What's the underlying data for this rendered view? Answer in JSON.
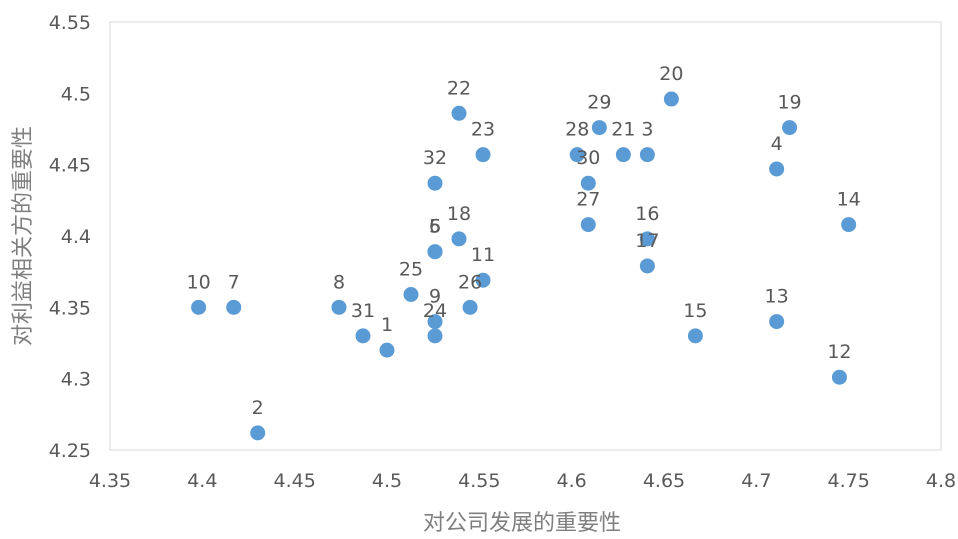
{
  "chart_data": {
    "type": "scatter",
    "title": "",
    "xlabel": "对公司发展的重要性",
    "ylabel": "对利益相关方的重要性",
    "xlim": [
      4.35,
      4.8
    ],
    "ylim": [
      4.25,
      4.55
    ],
    "x_ticks": [
      "4.35",
      "4.4",
      "4.45",
      "4.5",
      "4.55",
      "4.6",
      "4.65",
      "4.7",
      "4.75",
      "4.8"
    ],
    "y_ticks": [
      "4.25",
      "4.3",
      "4.35",
      "4.4",
      "4.45",
      "4.5",
      "4.55"
    ],
    "grid": false,
    "legend": "none",
    "marker_color": "#5b9bd5",
    "points": [
      {
        "label": "1",
        "x": 4.5,
        "y": 4.32
      },
      {
        "label": "2",
        "x": 4.43,
        "y": 4.262
      },
      {
        "label": "3",
        "x": 4.641,
        "y": 4.457
      },
      {
        "label": "4",
        "x": 4.711,
        "y": 4.447
      },
      {
        "label": "5",
        "x": 4.526,
        "y": 4.389
      },
      {
        "label": "6",
        "x": 4.526,
        "y": 4.389
      },
      {
        "label": "7",
        "x": 4.417,
        "y": 4.35
      },
      {
        "label": "8",
        "x": 4.474,
        "y": 4.35
      },
      {
        "label": "9",
        "x": 4.526,
        "y": 4.34
      },
      {
        "label": "10",
        "x": 4.398,
        "y": 4.35
      },
      {
        "label": "11",
        "x": 4.552,
        "y": 4.369
      },
      {
        "label": "12",
        "x": 4.745,
        "y": 4.301
      },
      {
        "label": "13",
        "x": 4.711,
        "y": 4.34
      },
      {
        "label": "14",
        "x": 4.75,
        "y": 4.408
      },
      {
        "label": "15",
        "x": 4.667,
        "y": 4.33
      },
      {
        "label": "16",
        "x": 4.641,
        "y": 4.398
      },
      {
        "label": "17",
        "x": 4.641,
        "y": 4.379
      },
      {
        "label": "18",
        "x": 4.539,
        "y": 4.398
      },
      {
        "label": "19",
        "x": 4.718,
        "y": 4.476
      },
      {
        "label": "20",
        "x": 4.654,
        "y": 4.496
      },
      {
        "label": "21",
        "x": 4.628,
        "y": 4.457
      },
      {
        "label": "22",
        "x": 4.539,
        "y": 4.486
      },
      {
        "label": "23",
        "x": 4.552,
        "y": 4.457
      },
      {
        "label": "24",
        "x": 4.526,
        "y": 4.33
      },
      {
        "label": "25",
        "x": 4.513,
        "y": 4.359
      },
      {
        "label": "26",
        "x": 4.545,
        "y": 4.35
      },
      {
        "label": "27",
        "x": 4.609,
        "y": 4.408
      },
      {
        "label": "28",
        "x": 4.603,
        "y": 4.457
      },
      {
        "label": "29",
        "x": 4.615,
        "y": 4.476
      },
      {
        "label": "30",
        "x": 4.609,
        "y": 4.437
      },
      {
        "label": "31",
        "x": 4.487,
        "y": 4.33
      },
      {
        "label": "32",
        "x": 4.526,
        "y": 4.437
      }
    ]
  }
}
